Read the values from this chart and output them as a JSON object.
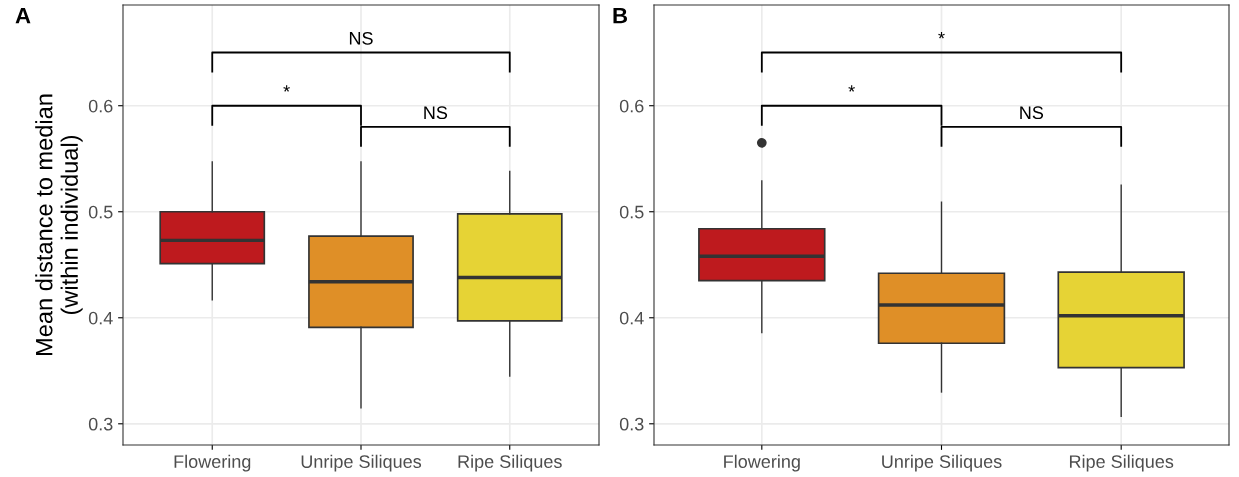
{
  "chart_data": [
    {
      "type": "box",
      "title": "A",
      "ylabel": "Mean distance to median\n(within individual)",
      "categories": [
        "Flowering",
        "Unripe Siliques",
        "Ripe Siliques"
      ],
      "colors": [
        "#be1a1e",
        "#df8f27",
        "#e6d335"
      ],
      "boxes": [
        {
          "low": 0.417,
          "q1": 0.451,
          "median": 0.473,
          "q3": 0.5,
          "high": 0.547
        },
        {
          "low": 0.315,
          "q1": 0.391,
          "median": 0.434,
          "q3": 0.477,
          "high": 0.547
        },
        {
          "low": 0.345,
          "q1": 0.397,
          "median": 0.438,
          "q3": 0.498,
          "high": 0.538
        }
      ],
      "ylim": [
        0.28,
        0.695
      ],
      "yticks": [
        0.3,
        0.4,
        0.5,
        0.6
      ],
      "grid": true,
      "annotations": [
        "NS",
        "*",
        "NS"
      ]
    },
    {
      "type": "box",
      "title": "B",
      "categories": [
        "Flowering",
        "Unripe Siliques",
        "Ripe Siliques"
      ],
      "colors": [
        "#be1a1e",
        "#df8f27",
        "#e6d335"
      ],
      "boxes": [
        {
          "low": 0.386,
          "q1": 0.435,
          "median": 0.458,
          "q3": 0.484,
          "high": 0.529,
          "outliers": [
            0.565
          ]
        },
        {
          "low": 0.33,
          "q1": 0.376,
          "median": 0.412,
          "q3": 0.442,
          "high": 0.509
        },
        {
          "low": 0.307,
          "q1": 0.353,
          "median": 0.402,
          "q3": 0.443,
          "high": 0.525
        }
      ],
      "ylim": [
        0.28,
        0.695
      ],
      "yticks": [
        0.3,
        0.4,
        0.5,
        0.6
      ],
      "grid": true,
      "annotations": [
        "*",
        "*",
        "NS"
      ]
    }
  ]
}
